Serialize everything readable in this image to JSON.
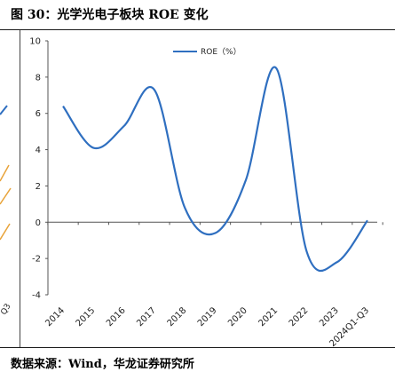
{
  "title": "图 30：光学光电子板块 ROE 变化",
  "source": "数据来源：Wind，华龙证券研究所",
  "left_fragment": {
    "tick": "Q3"
  },
  "chart_data": {
    "type": "line",
    "title": "",
    "xlabel": "",
    "ylabel": "",
    "ylim": [
      -4,
      10
    ],
    "yticks": [
      -4,
      -2,
      0,
      2,
      4,
      6,
      8,
      10
    ],
    "categories": [
      "2014",
      "2015",
      "2016",
      "2017",
      "2018",
      "2019",
      "2020",
      "2021",
      "2022",
      "2023",
      "2024Q1-Q3"
    ],
    "series": [
      {
        "name": "ROE（%）",
        "color": "#2f6fc0",
        "values": [
          6.4,
          4.1,
          5.3,
          7.3,
          0.8,
          -0.6,
          2.3,
          8.5,
          -1.6,
          -2.2,
          0.1
        ]
      }
    ],
    "legend_position": "top-center",
    "grid": false
  }
}
